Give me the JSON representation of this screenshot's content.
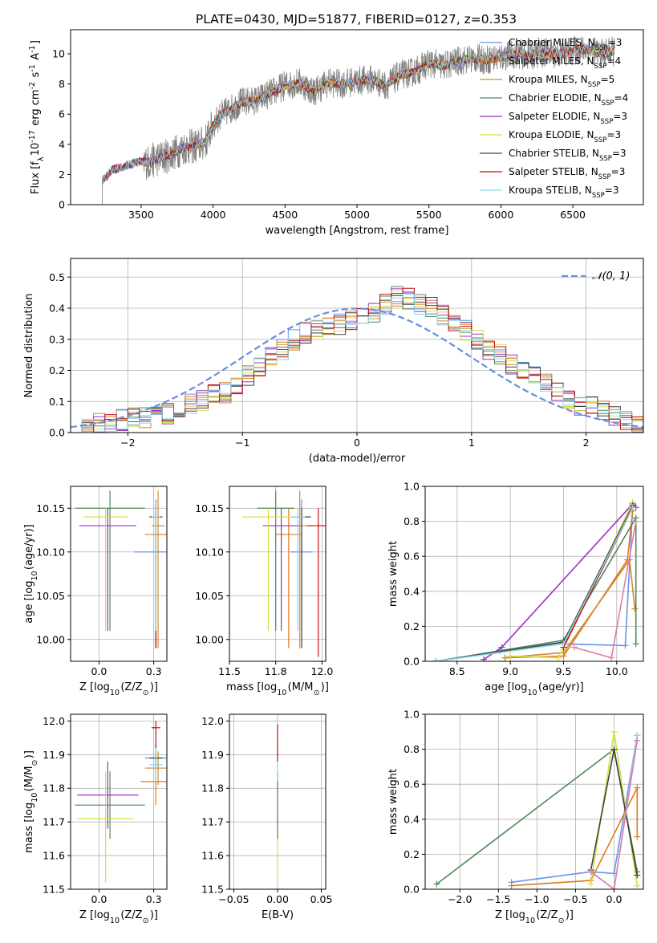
{
  "figure_title": "PLATE=0430, MJD=51877, FIBERID=0127, z=0.353",
  "chart_data": [
    {
      "type": "line",
      "id": "spectrum",
      "xlabel": "wavelength [Angstrom, rest frame]",
      "ylabel": "Flux [f_λ10^{-17} erg cm^{-2} s^{-1} A^{-1}]",
      "xlim": [
        3010,
        6990
      ],
      "ylim": [
        0,
        11.6
      ],
      "xticks": [
        3500,
        4000,
        4500,
        5000,
        5500,
        6000,
        6500
      ],
      "yticks": [
        0,
        2,
        4,
        6,
        8,
        10
      ],
      "grid": false,
      "legend_position": "top-right",
      "data_color": "#808080",
      "data_coverage": [
        3230,
        6790
      ],
      "continuum_points": {
        "wavelength": [
          3230,
          3300,
          3400,
          3500,
          3550,
          3600,
          3700,
          3800,
          3900,
          3950,
          4000,
          4050,
          4100,
          4200,
          4300,
          4400,
          4500,
          4600,
          4700,
          4800,
          4900,
          5000,
          5100,
          5200,
          5300,
          5400,
          5500,
          5600,
          5700,
          5800,
          5900,
          6000,
          6100,
          6200,
          6300,
          6400,
          6500,
          6600,
          6700,
          6790
        ],
        "flux": [
          1.6,
          2.3,
          2.6,
          2.9,
          2.8,
          3.0,
          3.3,
          3.8,
          3.9,
          4.2,
          5.3,
          5.9,
          6.2,
          6.8,
          6.9,
          7.4,
          7.9,
          8.1,
          7.5,
          8.1,
          8.0,
          8.2,
          8.3,
          7.9,
          8.6,
          8.8,
          9.4,
          9.2,
          9.5,
          9.7,
          9.6,
          9.8,
          10.0,
          9.9,
          10.1,
          10.0,
          10.2,
          10.3,
          10.0,
          10.2
        ]
      },
      "series": [
        {
          "name": "Chabrier MILES, N",
          "name_sub": "SSP",
          "name_suffix": "=3",
          "color": "#6495ed"
        },
        {
          "name": "Salpeter MILES, N",
          "name_sub": "SSP",
          "name_suffix": "=4",
          "color": "#e07b1a"
        },
        {
          "name": "Kroupa MILES, N",
          "name_sub": "SSP",
          "name_suffix": "=5",
          "color": "#d08a30"
        },
        {
          "name": "Chabrier ELODIE, N",
          "name_sub": "SSP",
          "name_suffix": "=4",
          "color": "#4f8a5b"
        },
        {
          "name": "Salpeter ELODIE, N",
          "name_sub": "SSP",
          "name_suffix": "=3",
          "color": "#9b30c8"
        },
        {
          "name": "Kroupa ELODIE, N",
          "name_sub": "SSP",
          "name_suffix": "=3",
          "color": "#d8e040"
        },
        {
          "name": "Chabrier STELIB, N",
          "name_sub": "SSP",
          "name_suffix": "=3",
          "color": "#404040"
        },
        {
          "name": "Salpeter STELIB, N",
          "name_sub": "SSP",
          "name_suffix": "=3",
          "color": "#c01010"
        },
        {
          "name": "Kroupa STELIB, N",
          "name_sub": "SSP",
          "name_suffix": "=3",
          "color": "#8fd6e8"
        }
      ]
    },
    {
      "type": "histogram",
      "id": "residuals",
      "xlabel": "(data-model)/error",
      "ylabel": "Normed distribution",
      "xlim": [
        -2.5,
        2.5
      ],
      "ylim": [
        0,
        0.56
      ],
      "xticks": [
        -2,
        -1,
        0,
        1,
        2
      ],
      "yticks": [
        0.0,
        0.1,
        0.2,
        0.3,
        0.4,
        0.5
      ],
      "grid": true,
      "legend_position": "top-right",
      "legend": "𝒩(0, 1)",
      "gaussian_color": "#6a8fd8",
      "bin_edges_range": [
        -2.5,
        2.5
      ],
      "n_bins": 50,
      "density": [
        0.01,
        0.02,
        0.03,
        0.03,
        0.04,
        0.05,
        0.05,
        0.06,
        0.06,
        0.08,
        0.09,
        0.1,
        0.12,
        0.13,
        0.15,
        0.18,
        0.21,
        0.24,
        0.27,
        0.3,
        0.32,
        0.33,
        0.34,
        0.35,
        0.36,
        0.38,
        0.39,
        0.41,
        0.44,
        0.43,
        0.41,
        0.4,
        0.38,
        0.35,
        0.33,
        0.3,
        0.27,
        0.25,
        0.22,
        0.2,
        0.18,
        0.16,
        0.13,
        0.11,
        0.09,
        0.08,
        0.07,
        0.05,
        0.04,
        0.03
      ]
    },
    {
      "type": "scatter",
      "id": "age-vs-Z",
      "xlabel": "Z [log_10(Z/Z_⊙)]",
      "ylabel": "age  [log_10(age/yr)]",
      "xlim": [
        -0.13,
        0.31
      ],
      "ylim": [
        9.975,
        10.175
      ],
      "xticks": [
        0.0,
        0.25
      ],
      "yticks": [
        10.0,
        10.05,
        10.1,
        10.15
      ],
      "grid": true,
      "points": [
        {
          "series": 0,
          "x": 0.26,
          "y": 10.1,
          "xerr": 0.1,
          "yerr": [
            0.06,
            0.06
          ]
        },
        {
          "series": 1,
          "x": 0.26,
          "y": 10.12,
          "xerr": 0.05,
          "yerr": [
            0.13,
            0.03
          ]
        },
        {
          "series": 2,
          "x": 0.27,
          "y": 10.13,
          "xerr": 0.03,
          "yerr": [
            0.14,
            0.04
          ]
        },
        {
          "series": 3,
          "x": 0.05,
          "y": 10.15,
          "xerr": 0.16,
          "yerr": [
            0.14,
            0.02
          ]
        },
        {
          "series": 4,
          "x": 0.04,
          "y": 10.13,
          "xerr": 0.13,
          "yerr": [
            0.12,
            0.02
          ]
        },
        {
          "series": 5,
          "x": 0.03,
          "y": 10.14,
          "xerr": 0.1,
          "yerr": [
            0.13,
            0.01
          ]
        },
        {
          "series": 6,
          "x": 0.26,
          "y": 10.14,
          "xerr": 0.03,
          "yerr": [
            0.15,
            0.01
          ]
        },
        {
          "series": 7,
          "x": 0.26,
          "y": 10.14,
          "xerr": 0.02,
          "yerr": [
            0.15,
            0.01
          ]
        },
        {
          "series": 8,
          "x": 0.26,
          "y": 10.14,
          "xerr": 0.02,
          "yerr": [
            0.13,
            0.01
          ]
        }
      ]
    },
    {
      "type": "scatter",
      "id": "age-vs-mass",
      "xlabel": "mass [log_10(M/M_⊙)]",
      "ylabel": "",
      "xlim": [
        11.5,
        12.02
      ],
      "ylim": [
        9.975,
        10.175
      ],
      "xticks": [
        11.5,
        11.75,
        12.0
      ],
      "yticks": [
        10.0,
        10.05,
        10.1,
        10.15
      ],
      "grid": true,
      "points": [
        {
          "series": 0,
          "x": 11.89,
          "y": 10.1,
          "xerr": 0.06,
          "yerr": [
            0.09,
            0.06
          ]
        },
        {
          "series": 1,
          "x": 11.82,
          "y": 10.12,
          "xerr": 0.07,
          "yerr": [
            0.13,
            0.03
          ]
        },
        {
          "series": 2,
          "x": 11.88,
          "y": 10.13,
          "xerr": 0.06,
          "yerr": [
            0.14,
            0.04
          ]
        },
        {
          "series": 3,
          "x": 11.75,
          "y": 10.15,
          "xerr": 0.1,
          "yerr": [
            0.14,
            0.02
          ]
        },
        {
          "series": 4,
          "x": 11.78,
          "y": 10.13,
          "xerr": 0.1,
          "yerr": [
            0.12,
            0.02
          ]
        },
        {
          "series": 5,
          "x": 11.71,
          "y": 10.14,
          "xerr": 0.14,
          "yerr": [
            0.13,
            0.01
          ]
        },
        {
          "series": 6,
          "x": 11.89,
          "y": 10.14,
          "xerr": 0.05,
          "yerr": [
            0.15,
            0.01
          ]
        },
        {
          "series": 7,
          "x": 11.98,
          "y": 10.13,
          "xerr": 0.06,
          "yerr": [
            0.15,
            0.02
          ]
        },
        {
          "series": 8,
          "x": 11.87,
          "y": 10.14,
          "xerr": 0.04,
          "yerr": [
            0.13,
            0.01
          ]
        }
      ]
    },
    {
      "type": "line",
      "id": "mass-weight-vs-age",
      "xlabel": "age  [log_10(age/yr)]",
      "ylabel": "mass weight",
      "xlim": [
        8.2,
        10.25
      ],
      "ylim": [
        0,
        1.0
      ],
      "xticks": [
        8.5,
        9.0,
        9.5,
        10.0
      ],
      "yticks": [
        0.0,
        0.2,
        0.4,
        0.6,
        0.8,
        1.0
      ],
      "grid": true,
      "series": [
        {
          "series": 0,
          "x": [
            8.9,
            9.5,
            10.08,
            10.15
          ],
          "y": [
            0.06,
            0.1,
            0.09,
            0.88
          ]
        },
        {
          "series": 1,
          "x": [
            8.95,
            9.5,
            10.1,
            10.15
          ],
          "y": [
            0.02,
            0.03,
            0.58,
            0.86
          ]
        },
        {
          "series": 2,
          "x": [
            8.95,
            9.5,
            10.12,
            10.17
          ],
          "y": [
            0.02,
            0.05,
            0.58,
            0.3
          ]
        },
        {
          "series": 3,
          "x": [
            8.3,
            9.5,
            10.18,
            10.18
          ],
          "y": [
            0.0,
            0.12,
            0.82,
            0.1
          ]
        },
        {
          "series": 4,
          "x": [
            8.75,
            8.92,
            10.15,
            10.18
          ],
          "y": [
            0.01,
            0.08,
            0.9,
            0.88
          ]
        },
        {
          "series": 5,
          "x": [
            9.0,
            9.45,
            10.15
          ],
          "y": [
            0.03,
            0.02,
            0.91
          ]
        },
        {
          "series": 6,
          "x": [
            8.3,
            9.5,
            10.15
          ],
          "y": [
            0.0,
            0.11,
            0.89
          ]
        },
        {
          "series": 7,
          "x": [
            9.5,
            10.15
          ],
          "y": [
            0.08,
            0.88
          ]
        },
        {
          "series": 8,
          "x": [
            8.3,
            9.5,
            10.15
          ],
          "y": [
            0.0,
            0.1,
            0.88
          ]
        },
        {
          "series": 9,
          "x": [
            9.6,
            9.95,
            10.18
          ],
          "y": [
            0.08,
            0.02,
            0.8
          ]
        }
      ]
    },
    {
      "type": "scatter",
      "id": "mass-vs-Z",
      "xlabel": "Z [log_10(Z/Z_⊙)]",
      "ylabel": "mass [log_10(M/M_⊙)]",
      "xlim": [
        -0.13,
        0.31
      ],
      "ylim": [
        11.5,
        12.02
      ],
      "xticks": [
        0.0,
        0.25
      ],
      "yticks": [
        11.5,
        11.6,
        11.7,
        11.8,
        11.9,
        12.0
      ],
      "grid": true,
      "points": [
        {
          "series": 0,
          "x": 0.26,
          "y": 11.89,
          "xerr": 0.05,
          "yerr": [
            0.04,
            0.04
          ]
        },
        {
          "series": 1,
          "x": 0.26,
          "y": 11.82,
          "xerr": 0.07,
          "yerr": [
            0.07,
            0.07
          ]
        },
        {
          "series": 2,
          "x": 0.27,
          "y": 11.86,
          "xerr": 0.06,
          "yerr": [
            0.05,
            0.05
          ]
        },
        {
          "series": 3,
          "x": 0.05,
          "y": 11.75,
          "xerr": 0.16,
          "yerr": [
            0.1,
            0.1
          ]
        },
        {
          "series": 4,
          "x": 0.04,
          "y": 11.78,
          "xerr": 0.14,
          "yerr": [
            0.1,
            0.1
          ]
        },
        {
          "series": 5,
          "x": 0.03,
          "y": 11.71,
          "xerr": 0.13,
          "yerr": [
            0.19,
            0.14
          ]
        },
        {
          "series": 6,
          "x": 0.26,
          "y": 11.89,
          "xerr": 0.03,
          "yerr": [
            0.04,
            0.04
          ]
        },
        {
          "series": 7,
          "x": 0.26,
          "y": 11.98,
          "xerr": 0.02,
          "yerr": [
            0.06,
            0.02
          ]
        },
        {
          "series": 8,
          "x": 0.26,
          "y": 11.87,
          "xerr": 0.03,
          "yerr": [
            0.05,
            0.05
          ]
        }
      ]
    },
    {
      "type": "scatter",
      "id": "mass-vs-EBV",
      "xlabel": "E(B-V)",
      "ylabel": "",
      "xlim": [
        -0.055,
        0.055
      ],
      "ylim": [
        11.5,
        12.02
      ],
      "xticks": [
        -0.05,
        0.0,
        0.05
      ],
      "yticks": [
        11.5,
        11.6,
        11.7,
        11.8,
        11.9,
        12.0
      ],
      "grid": true,
      "points": [
        {
          "series": 5,
          "x": 0.0,
          "y": 11.71,
          "xerr": 0.0,
          "yerr": [
            0.19,
            0.14
          ]
        },
        {
          "series": 3,
          "x": 0.0,
          "y": 11.75,
          "xerr": 0.0,
          "yerr": [
            0.1,
            0.1
          ]
        },
        {
          "series": 8,
          "x": 0.0,
          "y": 11.87,
          "xerr": 0.0,
          "yerr": [
            0.05,
            0.05
          ]
        },
        {
          "series": 7,
          "x": 0.0,
          "y": 11.93,
          "xerr": 0.0,
          "yerr": [
            0.05,
            0.06
          ]
        }
      ]
    },
    {
      "type": "line",
      "id": "mass-weight-vs-Z",
      "xlabel": "Z [log_10(Z/Z_⊙)]",
      "ylabel": "mass weight",
      "xlim": [
        -2.45,
        0.38
      ],
      "ylim": [
        0,
        1.0
      ],
      "xticks": [
        -2.0,
        -1.5,
        -1.0,
        -0.5,
        0.0
      ],
      "yticks": [
        0.0,
        0.2,
        0.4,
        0.6,
        0.8,
        1.0
      ],
      "grid": true,
      "series": [
        {
          "series": 0,
          "x": [
            -1.33,
            -0.3,
            0.0,
            0.3
          ],
          "y": [
            0.04,
            0.1,
            0.09,
            0.88
          ]
        },
        {
          "series": 1,
          "x": [
            -1.33,
            -0.3,
            0.3,
            0.3
          ],
          "y": [
            0.02,
            0.05,
            0.58,
            0.3
          ]
        },
        {
          "series": 3,
          "x": [
            -2.3,
            0.0,
            0.3
          ],
          "y": [
            0.03,
            0.8,
            0.1
          ]
        },
        {
          "series": 5,
          "x": [
            -0.3,
            0.0,
            0.3
          ],
          "y": [
            0.03,
            0.9,
            0.02
          ]
        },
        {
          "series": 6,
          "x": [
            -0.3,
            0.0,
            0.3
          ],
          "y": [
            0.11,
            0.8,
            0.08
          ]
        },
        {
          "series": 8,
          "x": [
            -0.3,
            0.0,
            0.3
          ],
          "y": [
            0.1,
            0.0,
            0.88
          ]
        },
        {
          "series": 9,
          "x": [
            -0.3,
            0.0,
            0.3
          ],
          "y": [
            0.1,
            0.0,
            0.85
          ]
        }
      ]
    }
  ],
  "palette": [
    "#6495ed",
    "#e07b1a",
    "#d08a30",
    "#4f8a5b",
    "#9b30c8",
    "#d8e040",
    "#404040",
    "#c01010",
    "#8fd6e8",
    "#e07bb0"
  ]
}
